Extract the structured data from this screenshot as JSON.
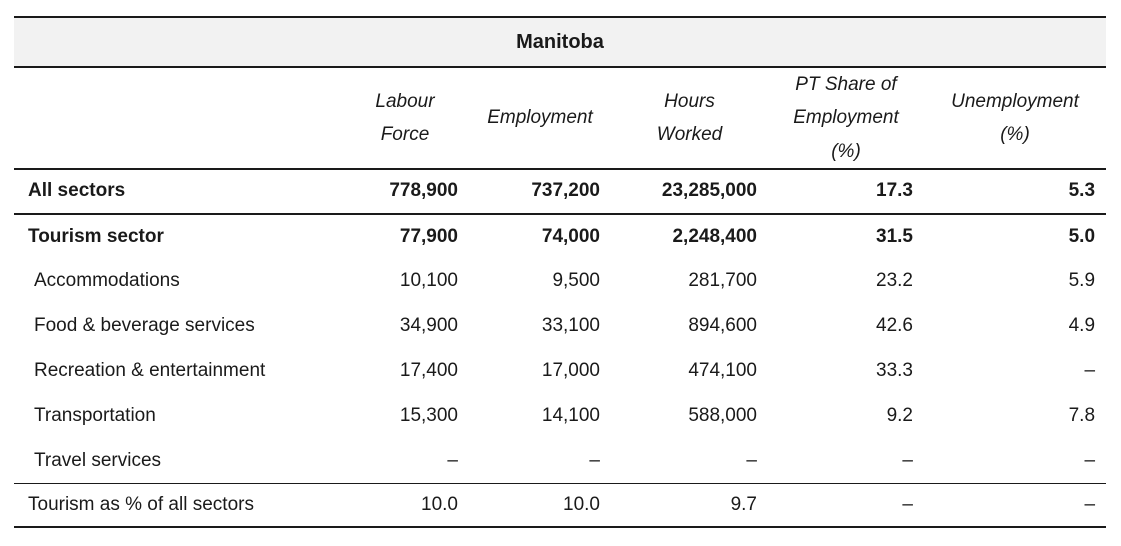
{
  "title": "Manitoba",
  "columns": [
    "Labour Force",
    "Employment",
    "Hours Worked",
    "PT Share of Employment (%)",
    "Unemployment (%)"
  ],
  "rows": [
    {
      "label": "All sectors",
      "emphasis": "bold",
      "values": [
        "778,900",
        "737,200",
        "23,285,000",
        "17.3",
        "5.3"
      ]
    },
    {
      "label": "Tourism sector",
      "emphasis": "bold",
      "values": [
        "77,900",
        "74,000",
        "2,248,400",
        "31.5",
        "5.0"
      ]
    },
    {
      "label": "Accommodations",
      "emphasis": "normal",
      "values": [
        "10,100",
        "9,500",
        "281,700",
        "23.2",
        "5.9"
      ]
    },
    {
      "label": "Food & beverage services",
      "emphasis": "normal",
      "values": [
        "34,900",
        "33,100",
        "894,600",
        "42.6",
        "4.9"
      ]
    },
    {
      "label": "Recreation & entertainment",
      "emphasis": "normal",
      "values": [
        "17,400",
        "17,000",
        "474,100",
        "33.3",
        "–"
      ]
    },
    {
      "label": "Transportation",
      "emphasis": "normal",
      "values": [
        "15,300",
        "14,100",
        "588,000",
        "9.2",
        "7.8"
      ]
    },
    {
      "label": "Travel services",
      "emphasis": "normal",
      "values": [
        "–",
        "–",
        "–",
        "–",
        "–"
      ]
    },
    {
      "label": "Tourism as % of all sectors",
      "emphasis": "summary",
      "values": [
        "10.0",
        "10.0",
        "9.7",
        "–",
        "–"
      ]
    }
  ],
  "colors": {
    "title_band_background": "#f2f2f2",
    "rule": "#1a1a1a",
    "text": "#1a1a1a"
  }
}
